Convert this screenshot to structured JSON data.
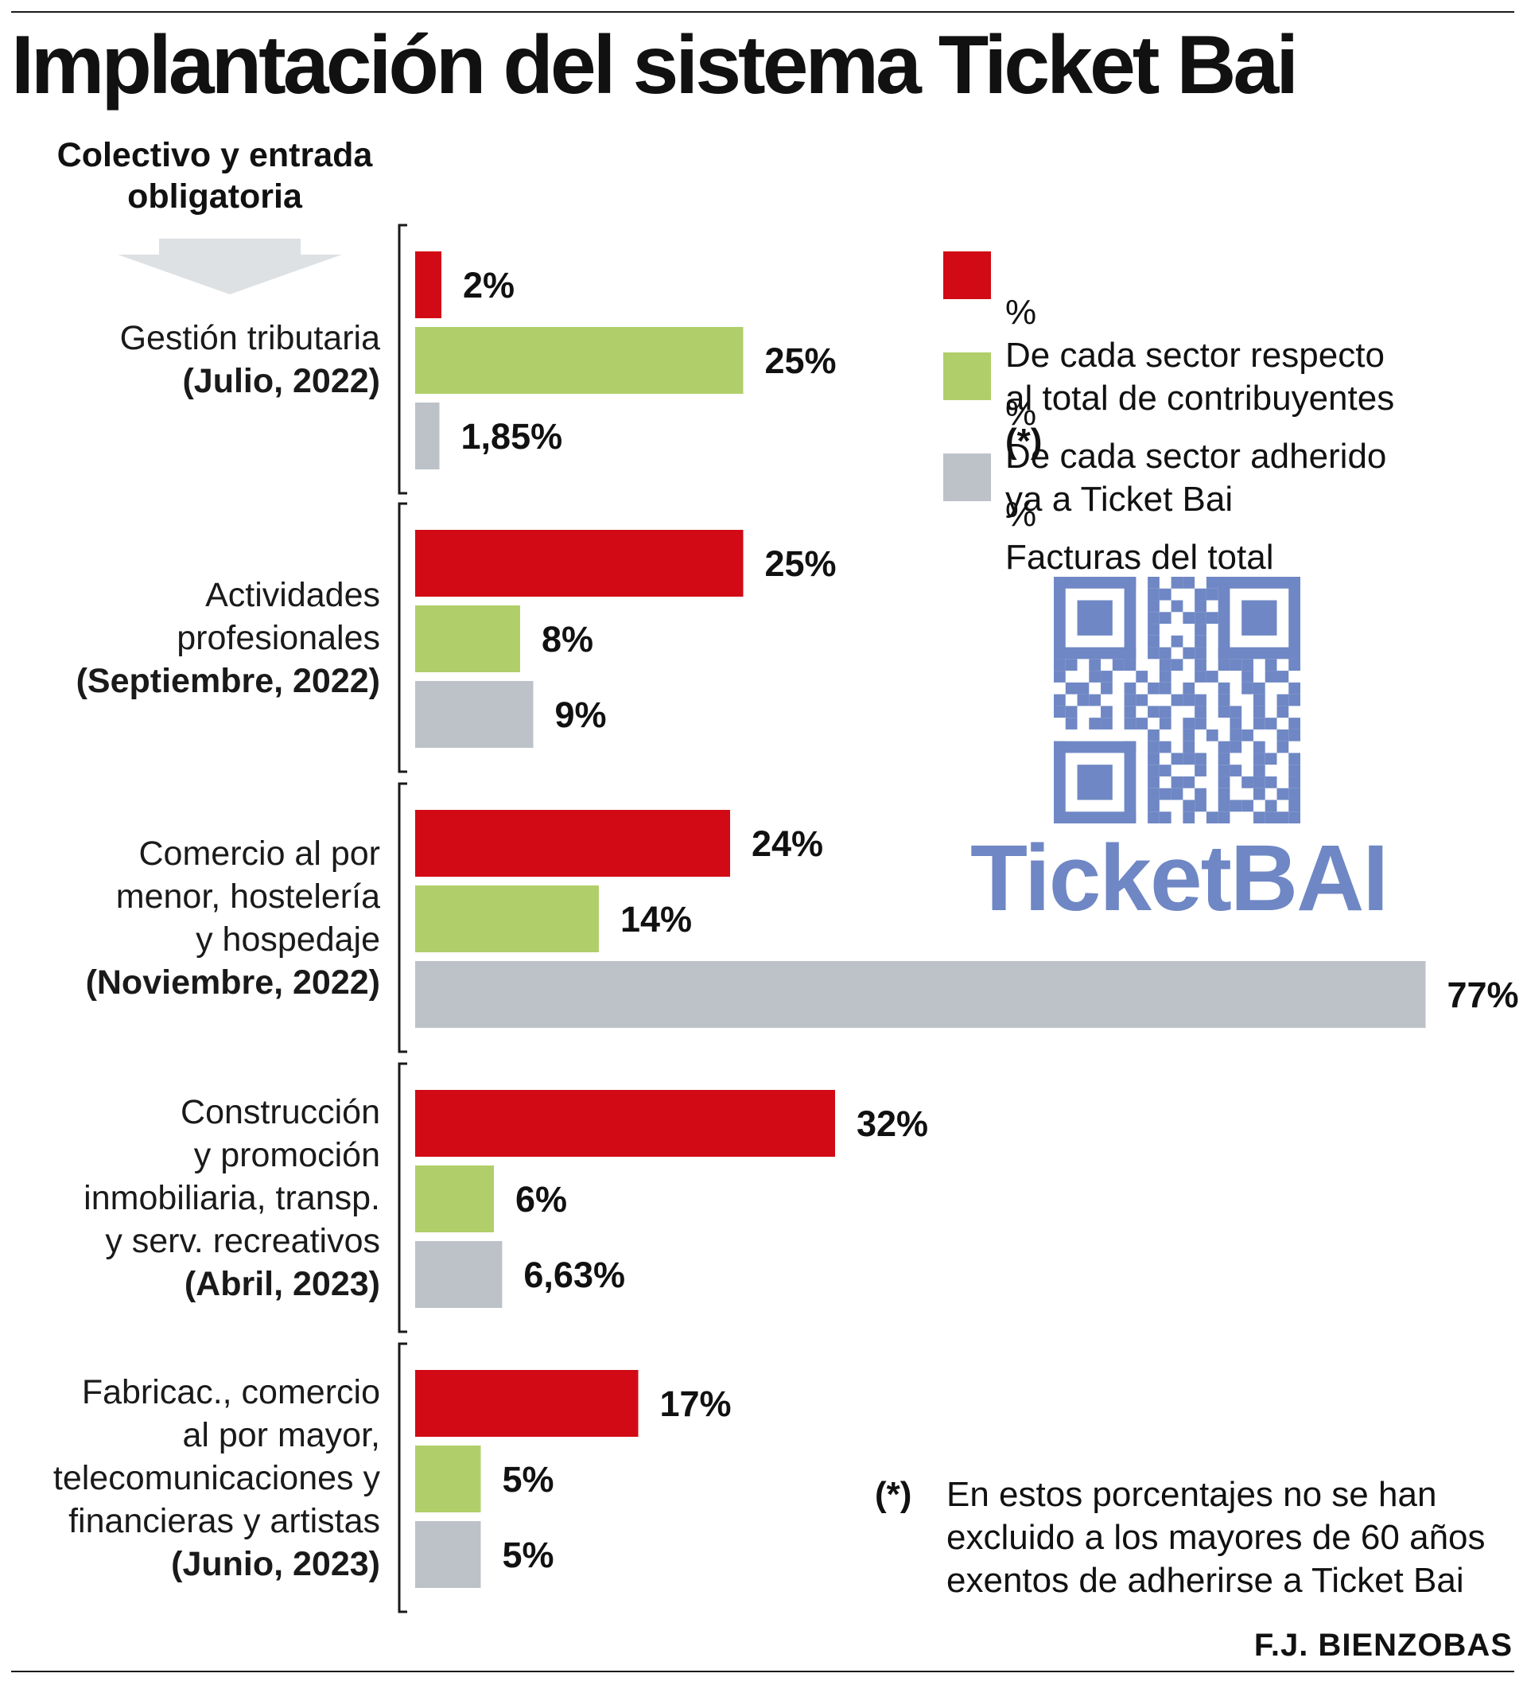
{
  "title": "Implantación del sistema Ticket Bai",
  "intro_label": "Colectivo y entrada obligatoria",
  "legend": {
    "items": [
      {
        "color": "#d20a15",
        "symbol": "%",
        "text": "De cada sector respecto\nal total de contribuyentes",
        "mark": "(*)"
      },
      {
        "color": "#b0cf6a",
        "symbol": "%",
        "text": "De cada sector adherido\nya a Ticket Bai",
        "mark": ""
      },
      {
        "color": "#bcc2c8",
        "symbol": "%",
        "text": "Facturas del total",
        "mark": ""
      }
    ]
  },
  "logo": {
    "text": "TicketBAI",
    "icon": "qr-code-icon",
    "color": "#6f87c4"
  },
  "footnote": {
    "mark": "(*)",
    "text": "En estos porcentajes no se han\nexcluido a los mayores de 60 años\nexentos de adherirse a Ticket Bai"
  },
  "credit": "F.J. BIENZOBAS",
  "chart_data": {
    "type": "bar",
    "orientation": "horizontal",
    "title": "Implantación del sistema Ticket Bai",
    "xlabel": "",
    "ylabel": "",
    "xlim": [
      0,
      77
    ],
    "grid": false,
    "legend_position": "top-right",
    "categories": [
      {
        "lines": [
          "Gestión tributaria"
        ],
        "period": "(Julio, 2022)"
      },
      {
        "lines": [
          "Actividades",
          "profesionales"
        ],
        "period": "(Septiembre, 2022)"
      },
      {
        "lines": [
          "Comercio al por",
          "menor, hostelería",
          "y hospedaje"
        ],
        "period": "(Noviembre, 2022)"
      },
      {
        "lines": [
          "Construcción",
          "y promoción",
          "inmobiliaria, transp.",
          "y serv. recreativos"
        ],
        "period": "(Abril, 2023)"
      },
      {
        "lines": [
          "Fabricac., comercio",
          "al por mayor,",
          "telecomunicaciones y",
          "financieras y artistas"
        ],
        "period": "(Junio, 2023)"
      }
    ],
    "series": [
      {
        "name": "% De cada sector respecto al total de contribuyentes (*)",
        "color": "#d20a15",
        "values": [
          2,
          25,
          24,
          32,
          17
        ],
        "labels": [
          "2%",
          "25%",
          "24%",
          "32%",
          "17%"
        ]
      },
      {
        "name": "% De cada sector adherido ya a Ticket Bai",
        "color": "#b0cf6a",
        "values": [
          25,
          8,
          14,
          6,
          5
        ],
        "labels": [
          "25%",
          "8%",
          "14%",
          "6%",
          "5%"
        ]
      },
      {
        "name": "% Facturas del total",
        "color": "#bcc2c8",
        "values": [
          1.85,
          9,
          77,
          6.63,
          5
        ],
        "labels": [
          "1,85%",
          "9%",
          "77%",
          "6,63%",
          "5%"
        ]
      }
    ]
  }
}
